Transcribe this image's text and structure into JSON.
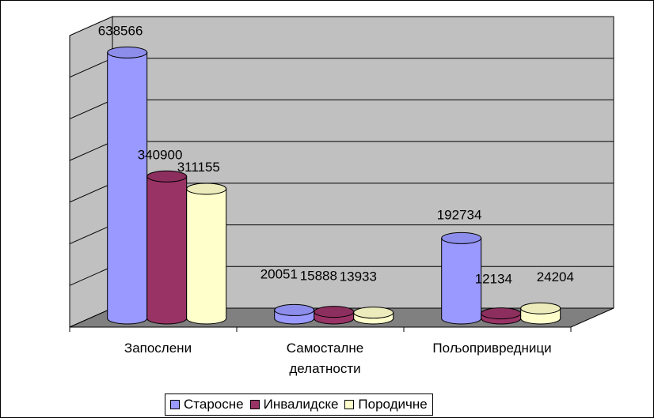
{
  "chart_data": {
    "type": "bar",
    "style": "3d-cylinder",
    "categories": [
      "Запослени",
      "Самосталне\nделатности",
      "Пољопривредници"
    ],
    "series": [
      {
        "name": "Старосне",
        "values": [
          638566,
          20051,
          192734
        ],
        "color": "#9999ff"
      },
      {
        "name": "Инвалидске",
        "values": [
          340900,
          15888,
          12134
        ],
        "color": "#993366"
      },
      {
        "name": "Породичне",
        "values": [
          311155,
          13933,
          24204
        ],
        "color": "#ffffcc"
      }
    ],
    "ylim": [
      0,
      700000
    ],
    "grid": true,
    "legend_position": "bottom",
    "colors": {
      "wall": "#c0c0c0",
      "floor": "#808080",
      "grid": "#000000"
    }
  }
}
